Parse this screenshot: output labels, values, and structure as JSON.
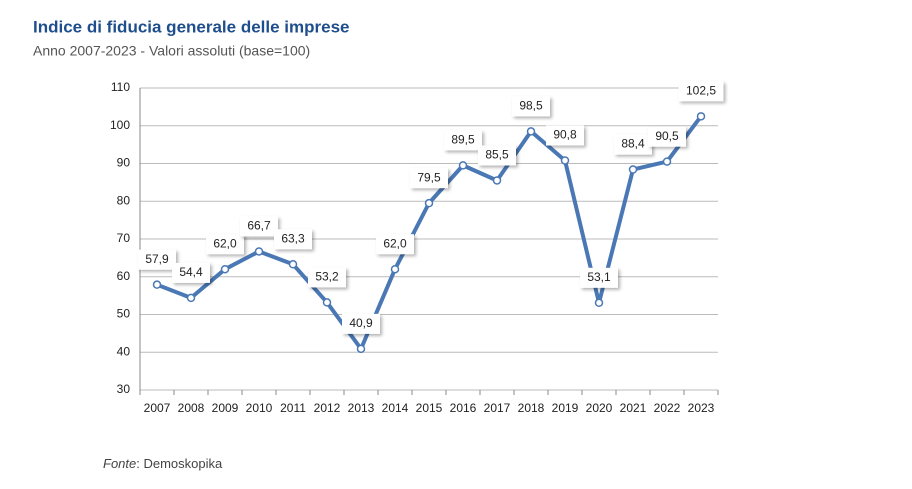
{
  "chart_data": {
    "type": "line",
    "title": "Indice di fiducia generale delle imprese",
    "subtitle": "Anno 2007-2023 - Valori assoluti (base=100)",
    "categories": [
      "2007",
      "2008",
      "2009",
      "2010",
      "2011",
      "2012",
      "2013",
      "2014",
      "2015",
      "2016",
      "2017",
      "2018",
      "2019",
      "2020",
      "2021",
      "2022",
      "2023"
    ],
    "values": [
      57.9,
      54.4,
      62.0,
      66.7,
      63.3,
      53.2,
      40.9,
      62.0,
      79.5,
      89.5,
      85.5,
      98.5,
      90.8,
      53.1,
      88.4,
      90.5,
      102.5
    ],
    "value_labels": [
      "57,9",
      "54,4",
      "62,0",
      "66,7",
      "63,3",
      "53,2",
      "40,9",
      "62,0",
      "79,5",
      "89,5",
      "85,5",
      "98,5",
      "90,8",
      "53,1",
      "88,4",
      "90,5",
      "102,5"
    ],
    "color": "#4a78b5",
    "ylim": [
      30,
      110
    ],
    "yticks": [
      30,
      40,
      50,
      60,
      70,
      80,
      90,
      100,
      110
    ],
    "grid": true,
    "source": {
      "label": "Fonte",
      "text": ": Demoskopika"
    }
  }
}
